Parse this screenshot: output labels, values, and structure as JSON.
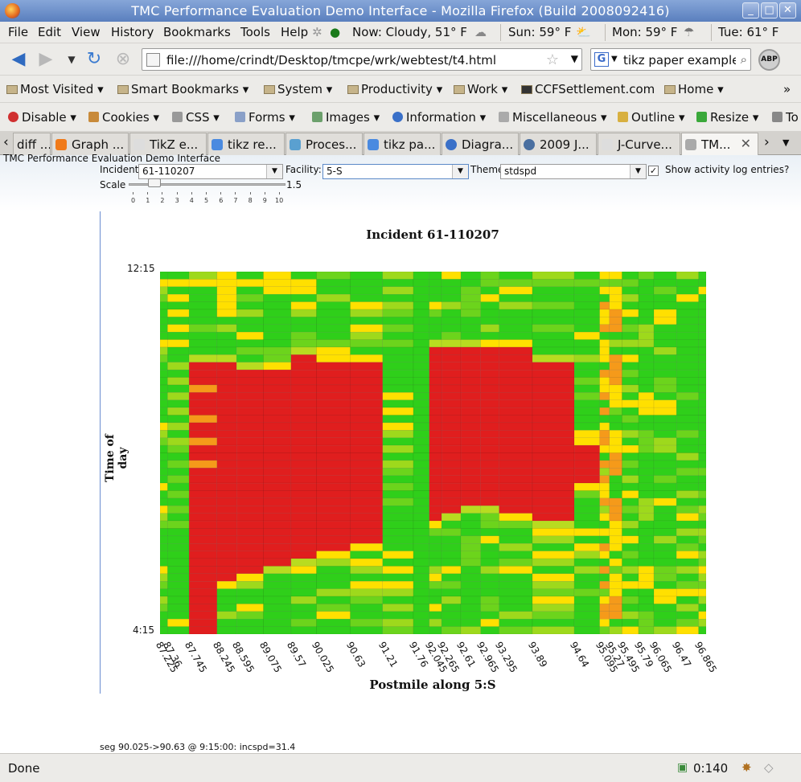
{
  "window": {
    "title": "TMC Performance Evaluation Demo Interface - Mozilla Firefox (Build 2008092416)",
    "controls": [
      "_",
      "□",
      "✕"
    ]
  },
  "menu": {
    "items": [
      "File",
      "Edit",
      "View",
      "History",
      "Bookmarks",
      "Tools",
      "Help"
    ],
    "weather": {
      "now": "Now: Cloudy, 51° F",
      "sun": "Sun: 59° F",
      "mon": "Mon: 59° F",
      "tue": "Tue: 61° F"
    }
  },
  "nav": {
    "url": "file:///home/crindt/Desktop/tmcpe/wrk/webtest/t4.html",
    "search_query": "tikz paper example",
    "search_engine_icon": "G",
    "abp": "ABP"
  },
  "bookmarks": {
    "items": [
      "Most Visited",
      "Smart Bookmarks",
      "System",
      "Productivity",
      "Work",
      "CCFSettlement.com",
      "Home"
    ],
    "overflow": "»"
  },
  "webdev": {
    "items": [
      "Disable",
      "Cookies",
      "CSS",
      "Forms",
      "Images",
      "Information",
      "Miscellaneous",
      "Outline",
      "Resize",
      "To"
    ]
  },
  "tabs": {
    "items": [
      "diff ...",
      "Graph ...",
      "TikZ e...",
      "tikz re...",
      "Proces...",
      "tikz pa...",
      "Diagra...",
      "2009 J...",
      "J-Curve...",
      "TM..."
    ],
    "active_index": 9
  },
  "page": {
    "app_title": "TMC Performance Evaluation Demo Interface",
    "incident_label": "Incident",
    "incident_value": "61-110207",
    "facility_label": "Facility:",
    "facility_value": "5-S",
    "theme_label": "Theme",
    "theme_value": "stdspd",
    "activity_log_label": "Show activity log entries?",
    "activity_log_checked": true,
    "scale_label": "Scale",
    "scale_value": "1.5",
    "scale_ticks": [
      "0",
      "1",
      "2",
      "3",
      "4",
      "5",
      "6",
      "7",
      "8",
      "9",
      "10"
    ],
    "seg_info": "seg 90.025->90.63 @ 9:15:00: incspd=31.4"
  },
  "status": {
    "text": "Done",
    "counter": "0:140"
  },
  "chart_data": {
    "type": "heatmap",
    "title": "Incident 61-110207",
    "xlabel": "Postmile along 5:S",
    "ylabel": "Time of day",
    "y_top_label": "12:15",
    "y_bottom_label": "4:15",
    "x": [
      87.225,
      87.36,
      87.745,
      88.245,
      88.595,
      89.075,
      89.57,
      90.025,
      90.63,
      91.21,
      91.76,
      92.045,
      92.265,
      92.61,
      92.965,
      93.295,
      93.89,
      94.64,
      95.095,
      95.27,
      95.495,
      95.79,
      96.065,
      96.47,
      96.865
    ],
    "x_tick_labels": [
      "87.225",
      "87.36",
      "87.745",
      "88.245",
      "88.595",
      "89.075",
      "89.57",
      "90.025",
      "90.63",
      "91.21",
      "91.76",
      "92.045",
      "92.265",
      "92.61",
      "92.965",
      "93.295",
      "93.89",
      "94.64",
      "95.095",
      "95.27",
      "95.495",
      "95.79",
      "96.065",
      "96.47",
      "96.865"
    ],
    "time_rows": 48,
    "congestion_red_ranges": [
      {
        "segment": "87.745",
        "start_row": 12,
        "end_row": 48
      },
      {
        "segment": "88.245",
        "start_row": 12,
        "end_row": 41
      },
      {
        "segment": "88.595",
        "start_row": 13,
        "end_row": 40
      },
      {
        "segment": "89.075",
        "start_row": 13,
        "end_row": 39
      },
      {
        "segment": "89.57",
        "start_row": 11,
        "end_row": 38
      },
      {
        "segment": "90.025",
        "start_row": 12,
        "end_row": 37
      },
      {
        "segment": "90.63",
        "start_row": 12,
        "end_row": 36
      },
      {
        "segment": "92.045",
        "start_row": 10,
        "end_row": 33
      },
      {
        "segment": "92.265",
        "start_row": 10,
        "end_row": 32
      },
      {
        "segment": "92.61",
        "start_row": 10,
        "end_row": 31
      },
      {
        "segment": "92.965",
        "start_row": 10,
        "end_row": 31
      },
      {
        "segment": "93.295",
        "start_row": 10,
        "end_row": 32
      },
      {
        "segment": "93.89",
        "start_row": 12,
        "end_row": 33
      },
      {
        "segment": "94.64",
        "start_row": 23,
        "end_row": 28
      }
    ],
    "colors": {
      "free": "#2fcf1a",
      "slow": "#ffe000",
      "mid": "#f59a1a",
      "congested": "#e01e1e"
    }
  }
}
